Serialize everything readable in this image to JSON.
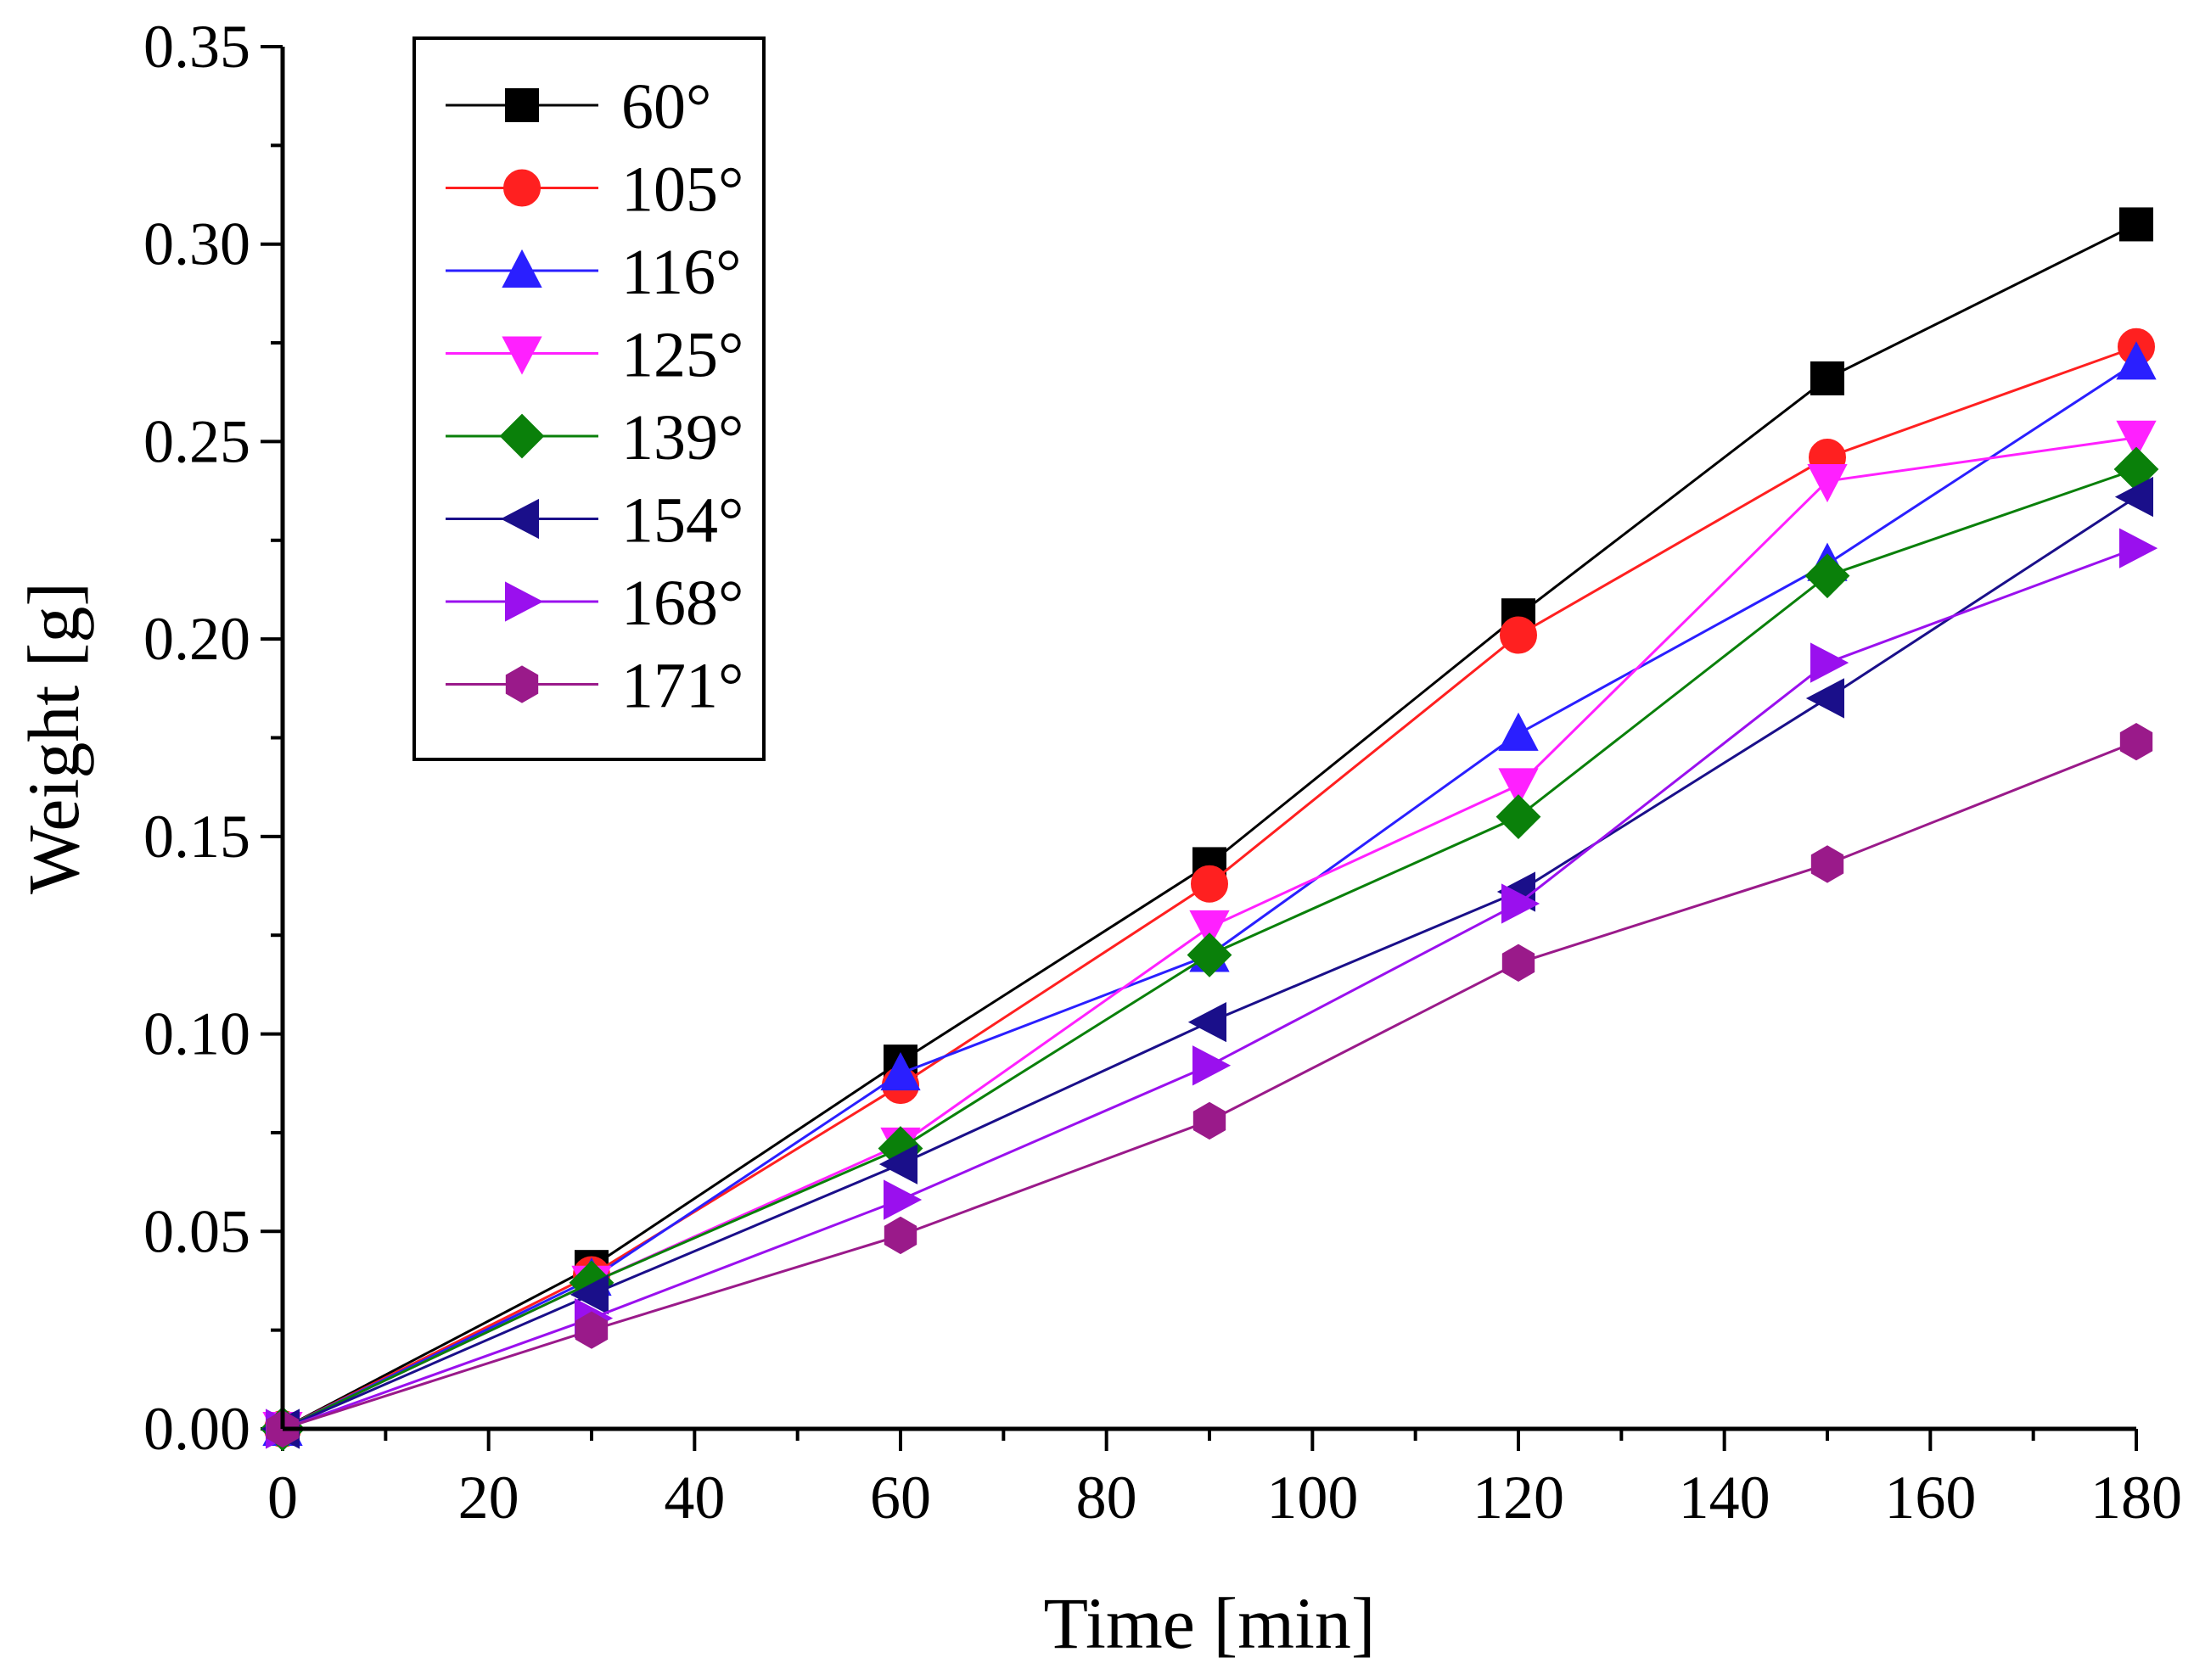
{
  "chart_data": {
    "type": "line",
    "title": "",
    "xlabel": "Time [min]",
    "ylabel": "Weight [g]",
    "xlim": [
      0,
      180
    ],
    "ylim": [
      0,
      0.35
    ],
    "x_ticks": [
      0,
      20,
      40,
      60,
      80,
      100,
      120,
      140,
      160,
      180
    ],
    "x_tick_labels": [
      "0",
      "20",
      "40",
      "60",
      "80",
      "100",
      "120",
      "140",
      "160",
      "180"
    ],
    "y_ticks": [
      0,
      0.05,
      0.1,
      0.15,
      0.2,
      0.25,
      0.3,
      0.35
    ],
    "y_tick_labels": [
      "0.00",
      "0.05",
      "0.10",
      "0.15",
      "0.20",
      "0.25",
      "0.30",
      "0.35"
    ],
    "grid": false,
    "legend_position": "top-left",
    "x": [
      0,
      30,
      60,
      90,
      120,
      150,
      180
    ],
    "series": [
      {
        "name": "60°",
        "color": "#000000",
        "marker": "square",
        "values": [
          0.0,
          0.041,
          0.093,
          0.143,
          0.206,
          0.266,
          0.305
        ]
      },
      {
        "name": "105°",
        "color": "#ff2020",
        "marker": "circle",
        "values": [
          0.0,
          0.039,
          0.087,
          0.138,
          0.201,
          0.246,
          0.274
        ]
      },
      {
        "name": "116°",
        "color": "#2a1fff",
        "marker": "triangle-up",
        "values": [
          0.0,
          0.038,
          0.09,
          0.12,
          0.176,
          0.219,
          0.27
        ]
      },
      {
        "name": "125°",
        "color": "#ff20ff",
        "marker": "triangle-down",
        "values": [
          0.0,
          0.037,
          0.072,
          0.127,
          0.163,
          0.24,
          0.251
        ]
      },
      {
        "name": "139°",
        "color": "#0a800a",
        "marker": "diamond",
        "values": [
          0.0,
          0.037,
          0.071,
          0.12,
          0.155,
          0.216,
          0.243
        ]
      },
      {
        "name": "154°",
        "color": "#1a0f8a",
        "marker": "triangle-left",
        "values": [
          0.0,
          0.034,
          0.067,
          0.103,
          0.136,
          0.185,
          0.236
        ]
      },
      {
        "name": "168°",
        "color": "#9a10ee",
        "marker": "triangle-right",
        "values": [
          0.0,
          0.028,
          0.058,
          0.092,
          0.133,
          0.194,
          0.223
        ]
      },
      {
        "name": "171°",
        "color": "#9a1a8a",
        "marker": "hexagon",
        "values": [
          0.0,
          0.025,
          0.049,
          0.078,
          0.118,
          0.143,
          0.174
        ]
      }
    ]
  }
}
